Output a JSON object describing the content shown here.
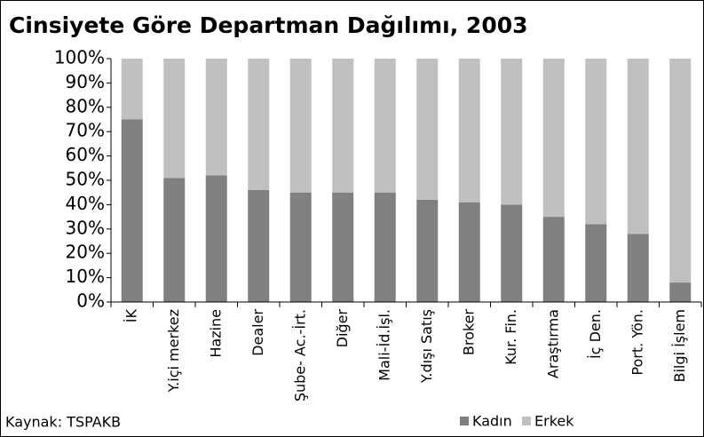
{
  "chart_data": {
    "type": "stacked_bar",
    "title": "Cinsiyete Göre Departman Dağılımı, 2003",
    "source": "Kaynak: TSPAKB",
    "categories": [
      "İK",
      "Y.içi merkez",
      "Hazine",
      "Dealer",
      "Şube- Ac.-İrt.",
      "Diğer",
      "Mali-İd.İşl.",
      "Y.dışı Satış",
      "Broker",
      "Kur. Fin.",
      "Araştırma",
      "İç Den.",
      "Port. Yön.",
      "Bilgi İşlem"
    ],
    "series": [
      {
        "name": "Kadın",
        "color": "#808080",
        "values": [
          75,
          51,
          52,
          46,
          45,
          45,
          45,
          42,
          41,
          40,
          35,
          32,
          28,
          8
        ]
      },
      {
        "name": "Erkek",
        "color": "#c0c0c0",
        "values": [
          25,
          49,
          48,
          54,
          55,
          55,
          55,
          58,
          59,
          60,
          65,
          68,
          72,
          92
        ]
      }
    ],
    "ylim": [
      0,
      100
    ],
    "yticks": [
      {
        "value": 0,
        "label": "0%"
      },
      {
        "value": 10,
        "label": "10%"
      },
      {
        "value": 20,
        "label": "20%"
      },
      {
        "value": 30,
        "label": "30%"
      },
      {
        "value": 40,
        "label": "40%"
      },
      {
        "value": 50,
        "label": "50%"
      },
      {
        "value": 60,
        "label": "60%"
      },
      {
        "value": 70,
        "label": "70%"
      },
      {
        "value": 80,
        "label": "80%"
      },
      {
        "value": 90,
        "label": "90%"
      },
      {
        "value": 100,
        "label": "100%"
      }
    ],
    "grid": false,
    "legend": "bottom-right"
  }
}
